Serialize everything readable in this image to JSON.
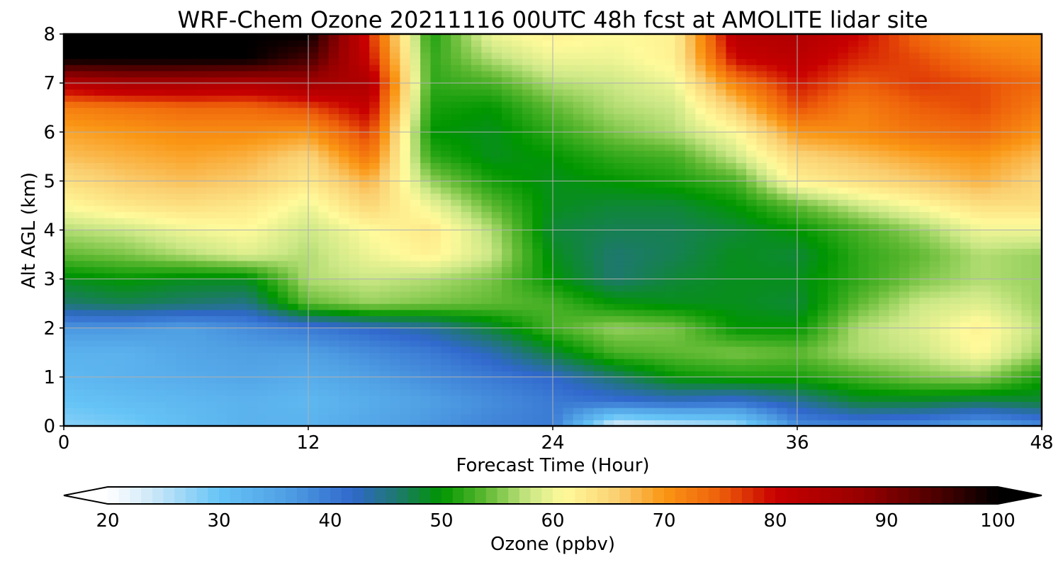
{
  "chart_data": {
    "type": "heatmap",
    "title": "WRF-Chem Ozone  20211116 00UTC 48h fcst at AMOLITE lidar site",
    "xlabel": "Forecast Time (Hour)",
    "ylabel": "Alt AGL (km)",
    "xlim": [
      0,
      48
    ],
    "ylim": [
      0,
      8
    ],
    "x_ticks": [
      0,
      12,
      24,
      36,
      48
    ],
    "y_ticks": [
      0,
      1,
      2,
      3,
      4,
      5,
      6,
      7,
      8
    ],
    "grid": true,
    "x": [
      0,
      3,
      6,
      9,
      12,
      15,
      18,
      21,
      24,
      27,
      30,
      33,
      36,
      39,
      42,
      45,
      48
    ],
    "y": [
      0,
      0.5,
      1,
      1.5,
      2,
      2.5,
      3,
      3.5,
      4,
      4.5,
      5,
      5.5,
      6,
      6.5,
      7,
      7.5,
      8
    ],
    "z": [
      [
        28,
        29,
        31,
        33,
        33,
        35,
        37,
        39,
        40,
        22,
        24,
        26,
        38,
        39,
        38,
        35,
        38
      ],
      [
        30,
        31,
        32,
        33,
        32,
        34,
        36,
        38,
        40,
        41,
        42,
        41,
        44,
        48,
        48,
        47,
        48
      ],
      [
        32,
        33,
        34,
        35,
        34,
        36,
        38,
        40,
        42,
        46,
        50,
        51,
        51,
        53,
        55,
        56,
        51
      ],
      [
        33,
        33,
        35,
        36,
        36,
        38,
        40,
        43,
        48,
        53,
        54,
        55,
        54,
        57,
        58,
        61,
        56
      ],
      [
        37,
        37,
        36,
        38,
        40,
        42,
        44,
        48,
        53,
        56,
        55,
        50,
        50,
        57,
        59,
        62,
        57
      ],
      [
        46,
        47,
        46,
        45,
        54,
        56,
        55,
        54,
        53,
        50,
        49,
        49,
        48,
        54,
        58,
        59,
        56
      ],
      [
        49,
        50,
        49,
        49,
        57,
        58,
        57,
        55,
        50,
        46,
        48,
        49,
        49,
        52,
        55,
        57,
        56
      ],
      [
        54,
        55,
        57,
        59,
        57,
        60,
        62,
        58,
        49,
        46,
        47,
        49,
        48,
        52,
        54,
        57,
        56
      ],
      [
        57,
        58,
        60,
        61,
        58,
        61,
        63,
        57,
        48,
        47,
        47,
        48,
        50,
        53,
        56,
        60,
        60
      ],
      [
        61,
        63,
        64,
        63,
        60,
        65,
        60,
        54,
        49,
        48,
        48,
        50,
        54,
        58,
        61,
        64,
        64
      ],
      [
        64,
        66,
        67,
        66,
        63,
        68,
        56,
        51,
        49,
        50,
        51,
        53,
        62,
        64,
        66,
        68,
        65
      ],
      [
        67,
        68,
        69,
        68,
        65,
        73,
        52,
        49,
        50,
        52,
        53,
        58,
        65,
        67,
        69,
        70,
        67
      ],
      [
        69,
        70,
        71,
        71,
        70,
        77,
        50,
        49,
        52,
        55,
        57,
        61,
        70,
        71,
        73,
        74,
        70
      ],
      [
        72,
        73,
        74,
        74,
        76,
        81,
        51,
        50,
        54,
        57,
        58,
        66,
        76,
        72,
        75,
        76,
        72
      ],
      [
        83,
        85,
        85,
        84,
        86,
        84,
        52,
        53,
        57,
        58,
        60,
        72,
        79,
        75,
        77,
        76,
        74
      ],
      [
        100,
        100,
        100,
        100,
        95,
        80,
        52,
        57,
        60,
        60,
        62,
        80,
        82,
        78,
        76,
        73,
        71
      ],
      [
        100,
        100,
        100,
        100,
        100,
        78,
        51,
        60,
        62,
        61,
        62,
        83,
        84,
        80,
        74,
        70,
        70
      ]
    ],
    "colorbar": {
      "label": "Ozone  (ppbv)",
      "ticks": [
        20,
        30,
        40,
        50,
        60,
        70,
        80,
        90,
        100
      ],
      "range": [
        20,
        100
      ],
      "extend": "both"
    }
  }
}
